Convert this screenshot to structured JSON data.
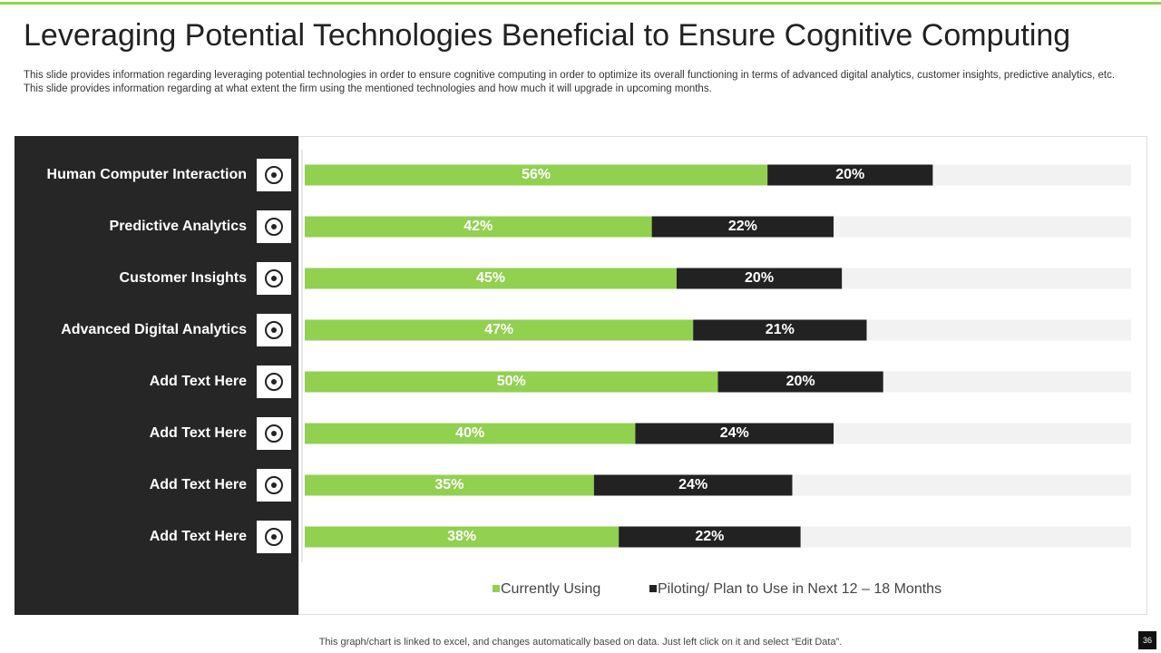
{
  "title": "Leveraging Potential Technologies Beneficial to Ensure Cognitive Computing",
  "description": "This slide provides information regarding leveraging potential technologies in order to ensure cognitive computing in order to optimize its overall functioning in terms of advanced digital analytics, customer insights, predictive analytics, etc. This slide provides information regarding at what extent the firm using the mentioned technologies and how much it will upgrade in upcoming months.",
  "chart_data": {
    "type": "bar",
    "orientation": "horizontal",
    "stacked": true,
    "categories": [
      "Human Computer Interaction",
      "Predictive Analytics",
      "Customer Insights",
      "Advanced Digital Analytics",
      "Add Text Here",
      "Add Text Here",
      "Add Text Here",
      "Add Text Here"
    ],
    "series": [
      {
        "name": "Currently Using",
        "color": "#92d050",
        "values": [
          56,
          42,
          45,
          47,
          50,
          40,
          35,
          38
        ],
        "value_labels": [
          "56%",
          "42%",
          "45%",
          "47%",
          "50%",
          "40%",
          "35%",
          "38%"
        ]
      },
      {
        "name": "Piloting/ Plan to Use in Next 12 – 18 Months",
        "color": "#222222",
        "values": [
          20,
          22,
          20,
          21,
          20,
          24,
          24,
          22
        ],
        "value_labels": [
          "20%",
          "22%",
          "20%",
          "21%",
          "20%",
          "24%",
          "24%",
          "22%"
        ]
      }
    ],
    "xlim": [
      0,
      100
    ]
  },
  "footer": "This graph/chart is linked to excel,  and changes automatically based on data. Just left click on it and select “Edit Data”.",
  "page_number": "36"
}
